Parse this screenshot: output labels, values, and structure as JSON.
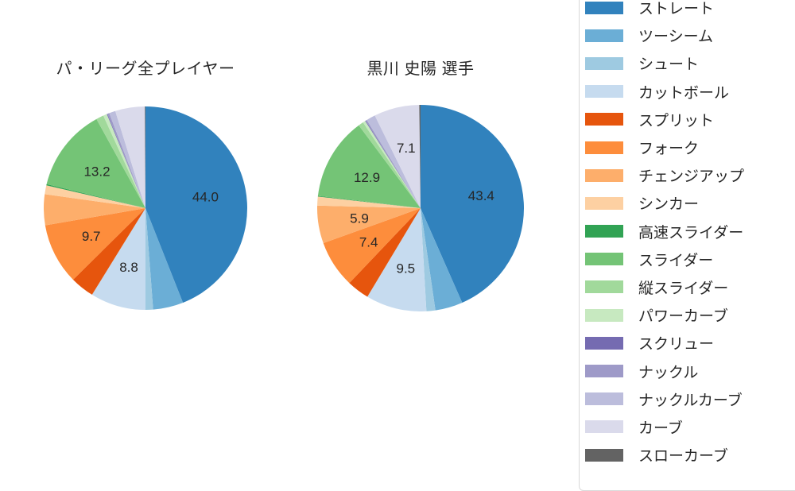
{
  "background": "#ffffff",
  "text_color": "#262626",
  "legend": {
    "position": "right",
    "border_color": "#d9d9d9",
    "background": "#ffffff"
  },
  "chart_data": [
    {
      "type": "pie",
      "title": "パ・リーグ全プレイヤー",
      "categories": [
        "ストレート",
        "ツーシーム",
        "シュート",
        "カットボール",
        "スプリット",
        "フォーク",
        "チェンジアップ",
        "シンカー",
        "高速スライダー",
        "スライダー",
        "縦スライダー",
        "パワーカーブ",
        "スクリュー",
        "ナックル",
        "ナックルカーブ",
        "カーブ",
        "スローカーブ"
      ],
      "values": [
        44.0,
        4.8,
        1.2,
        8.8,
        3.8,
        9.7,
        4.9,
        1.4,
        0.2,
        13.2,
        1.2,
        0.6,
        0.1,
        0.3,
        1.0,
        4.7,
        0.1
      ],
      "slice_labels": [
        "44.0",
        "",
        "",
        "8.8",
        "",
        "9.7",
        "",
        "",
        "",
        "13.2",
        "",
        "",
        "",
        "",
        "",
        "",
        ""
      ],
      "colors": [
        "#3182bd",
        "#6baed6",
        "#9ecae1",
        "#c6dbef",
        "#e6550d",
        "#fd8d3c",
        "#fdae6b",
        "#fdd0a2",
        "#31a354",
        "#74c476",
        "#a1d99b",
        "#c7e9c0",
        "#756bb1",
        "#9e9ac8",
        "#bcbddc",
        "#dadaeb",
        "#636363"
      ],
      "start_angle": "top",
      "direction": "clockwise",
      "label_distance": 0.6,
      "units": "percent"
    },
    {
      "type": "pie",
      "title": "黒川 史陽  選手",
      "categories": [
        "ストレート",
        "ツーシーム",
        "シュート",
        "カットボール",
        "スプリット",
        "フォーク",
        "チェンジアップ",
        "シンカー",
        "高速スライダー",
        "スライダー",
        "縦スライダー",
        "パワーカーブ",
        "スクリュー",
        "ナックル",
        "ナックルカーブ",
        "カーブ",
        "スローカーブ"
      ],
      "values": [
        43.4,
        4.3,
        1.4,
        9.5,
        3.5,
        7.4,
        5.9,
        1.4,
        0.1,
        12.9,
        0.8,
        0.4,
        0.1,
        0.2,
        1.4,
        7.1,
        0.2
      ],
      "slice_labels": [
        "43.4",
        "",
        "",
        "9.5",
        "",
        "7.4",
        "5.9",
        "",
        "",
        "12.9",
        "",
        "",
        "",
        "",
        "",
        "7.1",
        ""
      ],
      "colors": [
        "#3182bd",
        "#6baed6",
        "#9ecae1",
        "#c6dbef",
        "#e6550d",
        "#fd8d3c",
        "#fdae6b",
        "#fdd0a2",
        "#31a354",
        "#74c476",
        "#a1d99b",
        "#c7e9c0",
        "#756bb1",
        "#9e9ac8",
        "#bcbddc",
        "#dadaeb",
        "#636363"
      ],
      "start_angle": "top",
      "direction": "clockwise",
      "label_distance": 0.6,
      "units": "percent"
    }
  ]
}
